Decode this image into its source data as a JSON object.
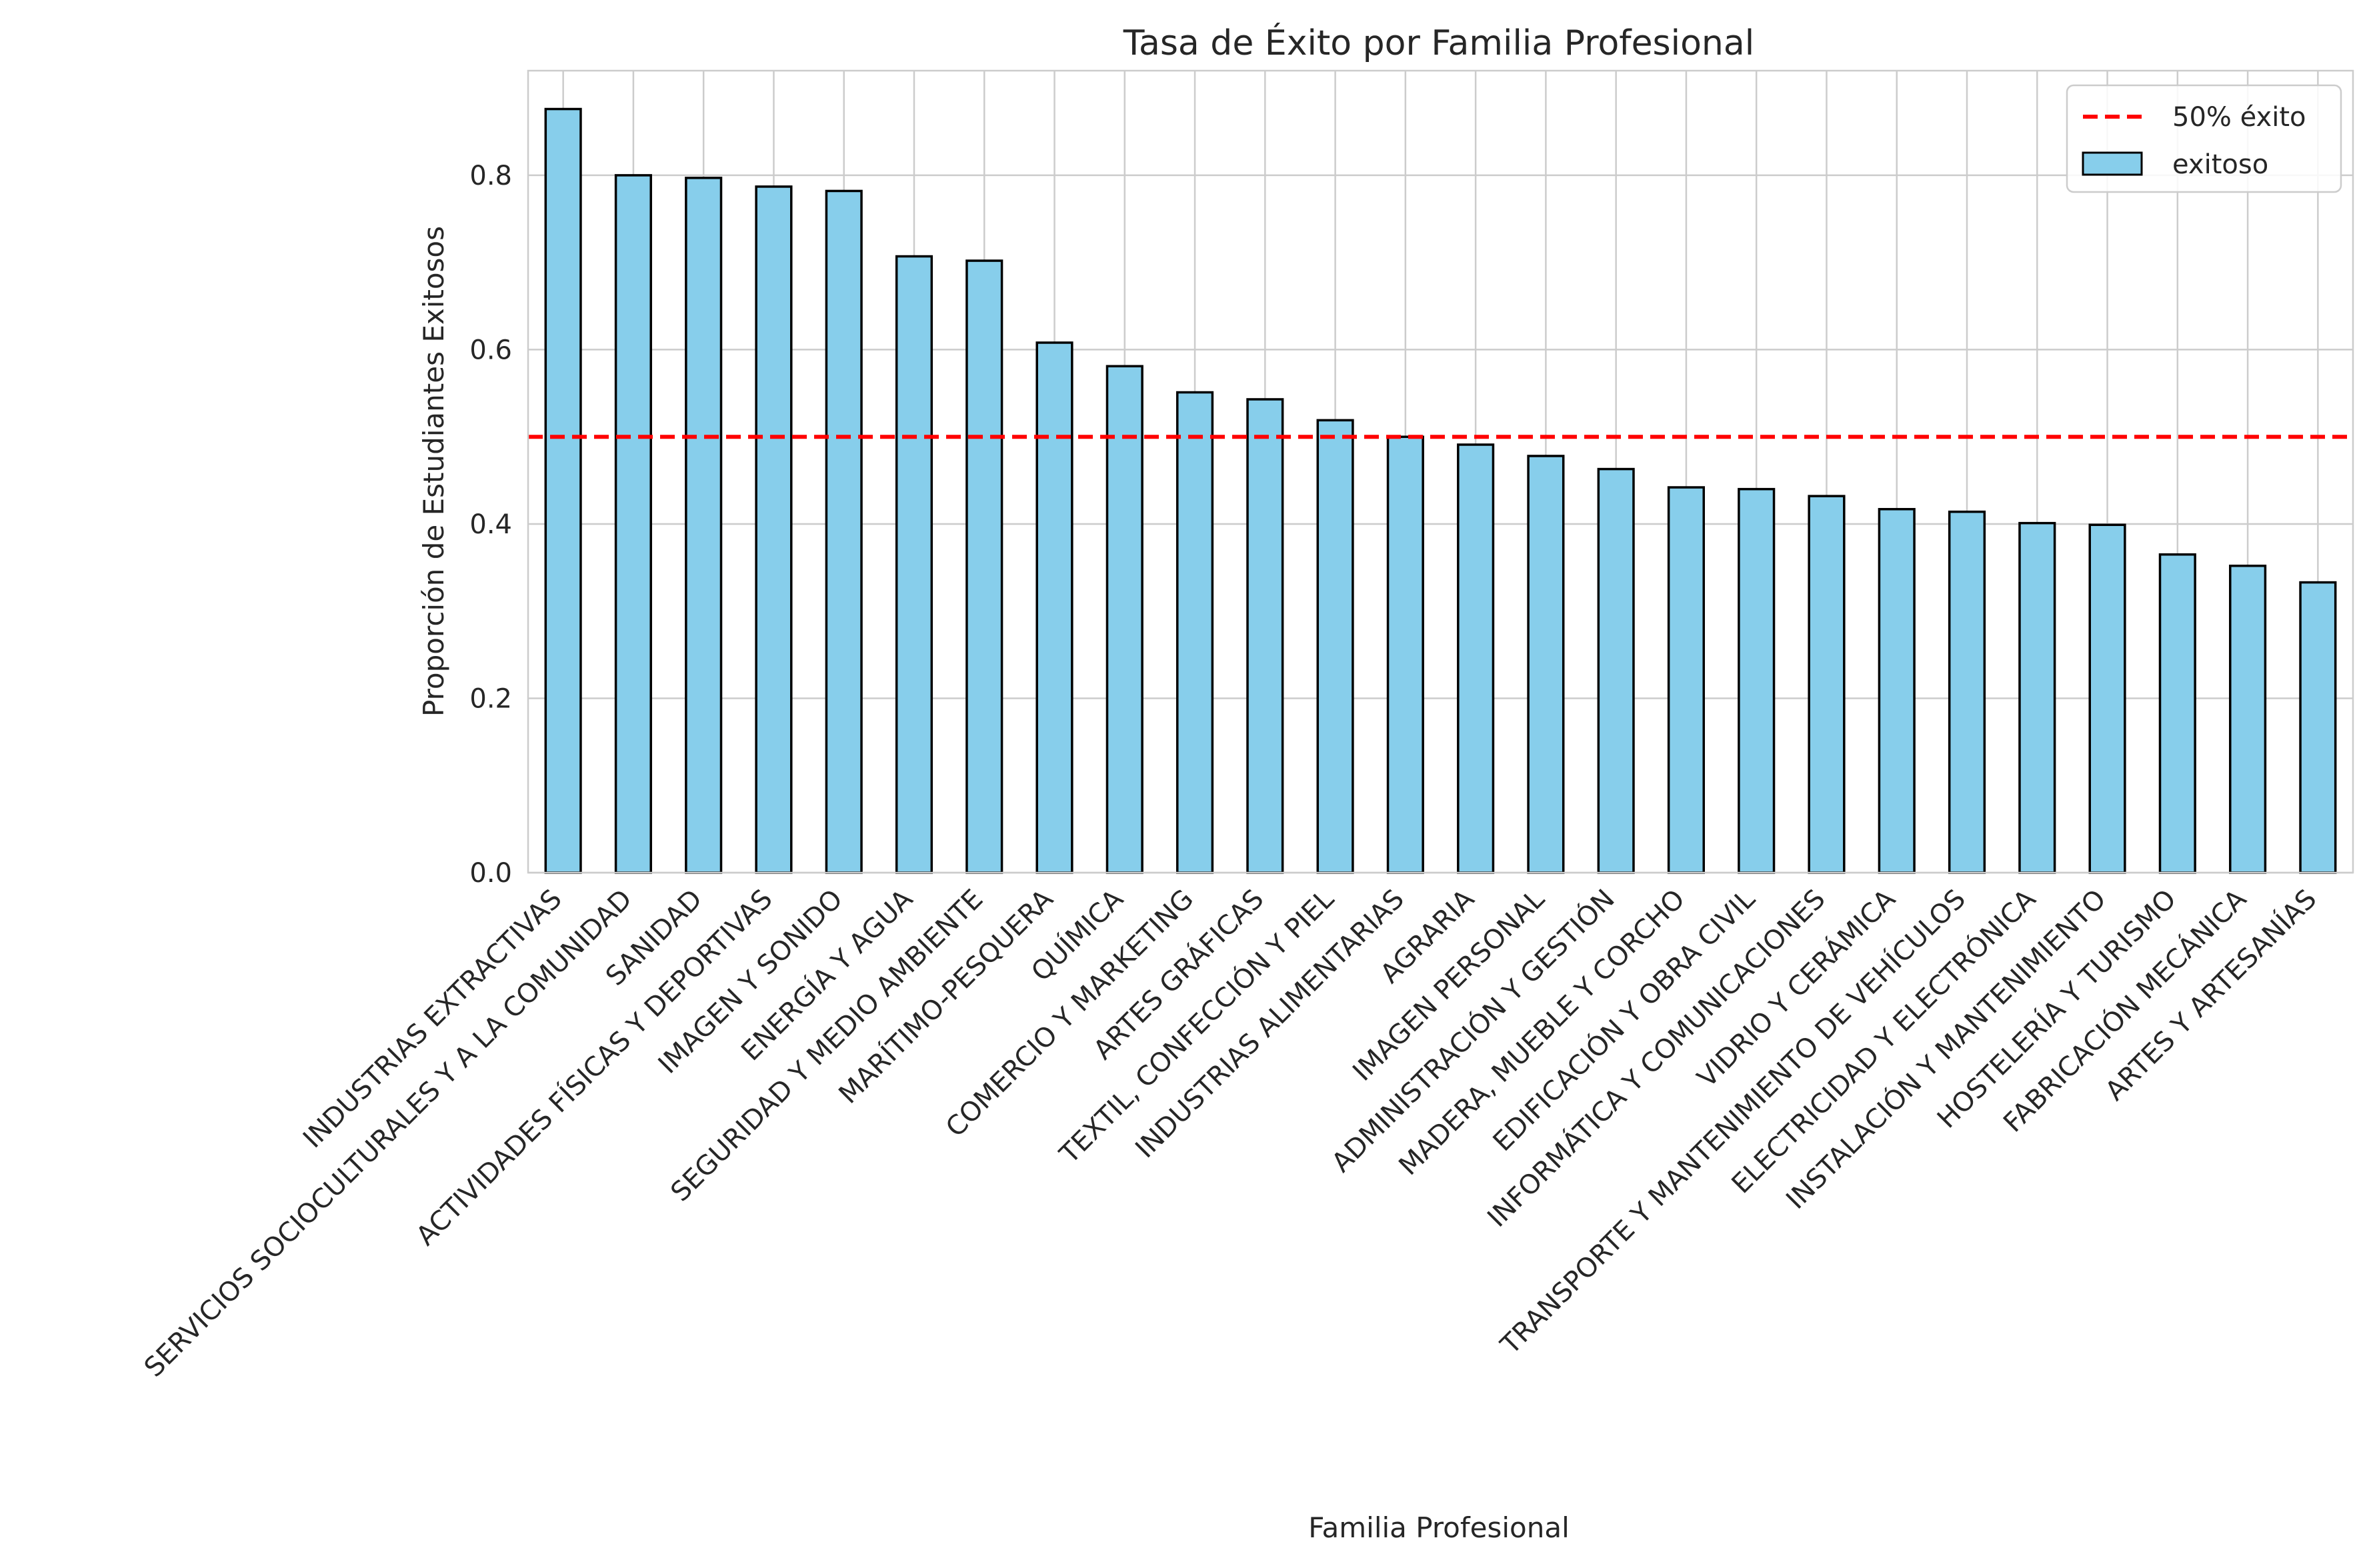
{
  "chart_data": {
    "type": "bar",
    "title": "Tasa de Éxito por Familia Profesional",
    "xlabel": "Familia Profesional",
    "ylabel": "Proporción de Estudiantes Exitosos",
    "ylim": [
      0,
      0.92
    ],
    "yticks": [
      0.0,
      0.2,
      0.4,
      0.6,
      0.8
    ],
    "ytick_labels": [
      "0.0",
      "0.2",
      "0.4",
      "0.6",
      "0.8"
    ],
    "grid": true,
    "legend_position": "top-right",
    "categories": [
      "INDUSTRIAS EXTRACTIVAS",
      "SERVICIOS SOCIOCULTURALES Y A LA COMUNIDAD",
      "SANIDAD",
      "ACTIVIDADES FÍSICAS Y DEPORTIVAS",
      "IMAGEN Y SONIDO",
      "ENERGÍA Y AGUA",
      "SEGURIDAD Y MEDIO AMBIENTE",
      "MARÍTIMO-PESQUERA",
      "QUÍMICA",
      "COMERCIO Y MARKETING",
      "ARTES GRÁFICAS",
      "TEXTIL, CONFECCIÓN Y PIEL",
      "INDUSTRIAS ALIMENTARIAS",
      "AGRARIA",
      "IMAGEN PERSONAL",
      "ADMINISTRACIÓN Y GESTIÓN",
      "MADERA, MUEBLE Y CORCHO",
      "EDIFICACIÓN Y OBRA CIVIL",
      "INFORMÁTICA Y COMUNICACIONES",
      "VIDRIO Y CERÁMICA",
      "TRANSPORTE Y MANTENIMIENTO DE VEHÍCULOS",
      "ELECTRICIDAD Y ELECTRÓNICA",
      "INSTALACIÓN Y MANTENIMIENTO",
      "HOSTELERÍA Y TURISMO",
      "FABRICACIÓN MECÁNICA",
      "ARTES Y ARTESANÍAS"
    ],
    "series": [
      {
        "name": "exitoso",
        "color": "#87CEEB",
        "values": [
          0.876,
          0.8,
          0.797,
          0.787,
          0.782,
          0.707,
          0.702,
          0.608,
          0.581,
          0.551,
          0.543,
          0.519,
          0.5,
          0.491,
          0.478,
          0.463,
          0.442,
          0.44,
          0.432,
          0.417,
          0.414,
          0.401,
          0.399,
          0.365,
          0.352,
          0.333
        ]
      }
    ],
    "reference_line": {
      "name": "50% éxito",
      "value": 0.5,
      "color": "#ff0000",
      "style": "dashed"
    }
  }
}
